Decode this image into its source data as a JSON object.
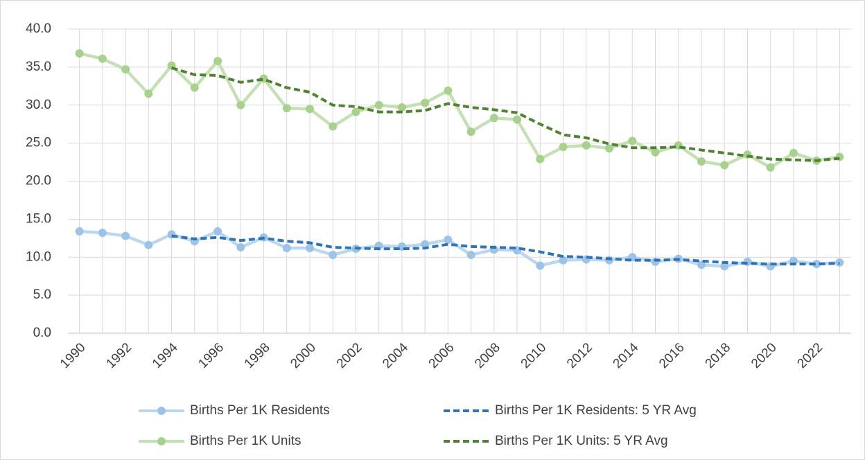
{
  "chart_data": {
    "type": "line",
    "categories": [
      "1990",
      null,
      "1992",
      null,
      "1994",
      null,
      "1996",
      null,
      "1998",
      null,
      "2000",
      null,
      "2002",
      null,
      "2004",
      null,
      "2006",
      null,
      "2008",
      null,
      "2010",
      null,
      "2012",
      null,
      "2014",
      null,
      "2016",
      null,
      "2018",
      null,
      "2020",
      null,
      "2022",
      null
    ],
    "ylim": [
      0,
      40
    ],
    "yticks": [
      {
        "value": 0,
        "label": "0.0"
      },
      {
        "value": 5,
        "label": "5.0"
      },
      {
        "value": 10,
        "label": "10.0"
      },
      {
        "value": 15,
        "label": "15.0"
      },
      {
        "value": 20,
        "label": "20.0"
      },
      {
        "value": 25,
        "label": "25.0"
      },
      {
        "value": 30,
        "label": "30.0"
      },
      {
        "value": 35,
        "label": "35.0"
      },
      {
        "value": 40,
        "label": "40.0"
      }
    ],
    "grid": true,
    "legend": "bottom",
    "series": [
      {
        "name": "Births Per 1K Residents",
        "color": "#bdd7ee",
        "marker_color": "#9dc3e6",
        "dashed": false,
        "markers": true,
        "values": [
          13.4,
          13.2,
          12.8,
          11.6,
          13.0,
          12.1,
          13.4,
          11.3,
          12.6,
          11.2,
          11.2,
          10.3,
          11.1,
          11.5,
          11.4,
          11.7,
          12.3,
          10.3,
          11.0,
          10.9,
          8.9,
          9.6,
          9.7,
          9.6,
          10.0,
          9.4,
          9.8,
          9.0,
          8.8,
          9.4,
          8.8,
          9.5,
          9.1,
          9.3
        ]
      },
      {
        "name": "Births Per 1K Residents: 5 YR Avg",
        "color": "#2e75b6",
        "dashed": true,
        "markers": false,
        "values": [
          null,
          null,
          null,
          null,
          12.8,
          12.4,
          12.6,
          12.2,
          12.5,
          12.1,
          11.9,
          11.3,
          11.2,
          11.1,
          11.1,
          11.2,
          11.7,
          11.4,
          11.3,
          11.2,
          10.7,
          10.1,
          10.0,
          9.8,
          9.6,
          9.6,
          9.7,
          9.5,
          9.3,
          9.2,
          9.1,
          9.1,
          9.1,
          9.2
        ]
      },
      {
        "name": "Births Per 1K Units",
        "color": "#c5e0b4",
        "marker_color": "#a9d18e",
        "dashed": false,
        "markers": true,
        "values": [
          36.8,
          36.1,
          34.7,
          31.5,
          35.2,
          32.3,
          35.8,
          30.0,
          33.5,
          29.6,
          29.5,
          27.2,
          29.1,
          30.0,
          29.7,
          30.3,
          31.9,
          26.5,
          28.3,
          28.1,
          22.9,
          24.5,
          24.7,
          24.3,
          25.3,
          23.8,
          24.7,
          22.6,
          22.1,
          23.5,
          21.8,
          23.7,
          22.7,
          23.2
        ]
      },
      {
        "name": "Births Per 1K Units: 5 YR Avg",
        "color": "#548235",
        "dashed": true,
        "markers": false,
        "values": [
          null,
          null,
          null,
          null,
          34.9,
          34.0,
          33.9,
          33.0,
          33.4,
          32.3,
          31.7,
          30.0,
          29.8,
          29.1,
          29.1,
          29.3,
          30.2,
          29.7,
          29.4,
          29.0,
          27.5,
          26.1,
          25.7,
          24.9,
          24.4,
          24.4,
          24.5,
          24.1,
          23.7,
          23.3,
          22.9,
          22.8,
          22.7,
          23.0
        ]
      }
    ]
  }
}
